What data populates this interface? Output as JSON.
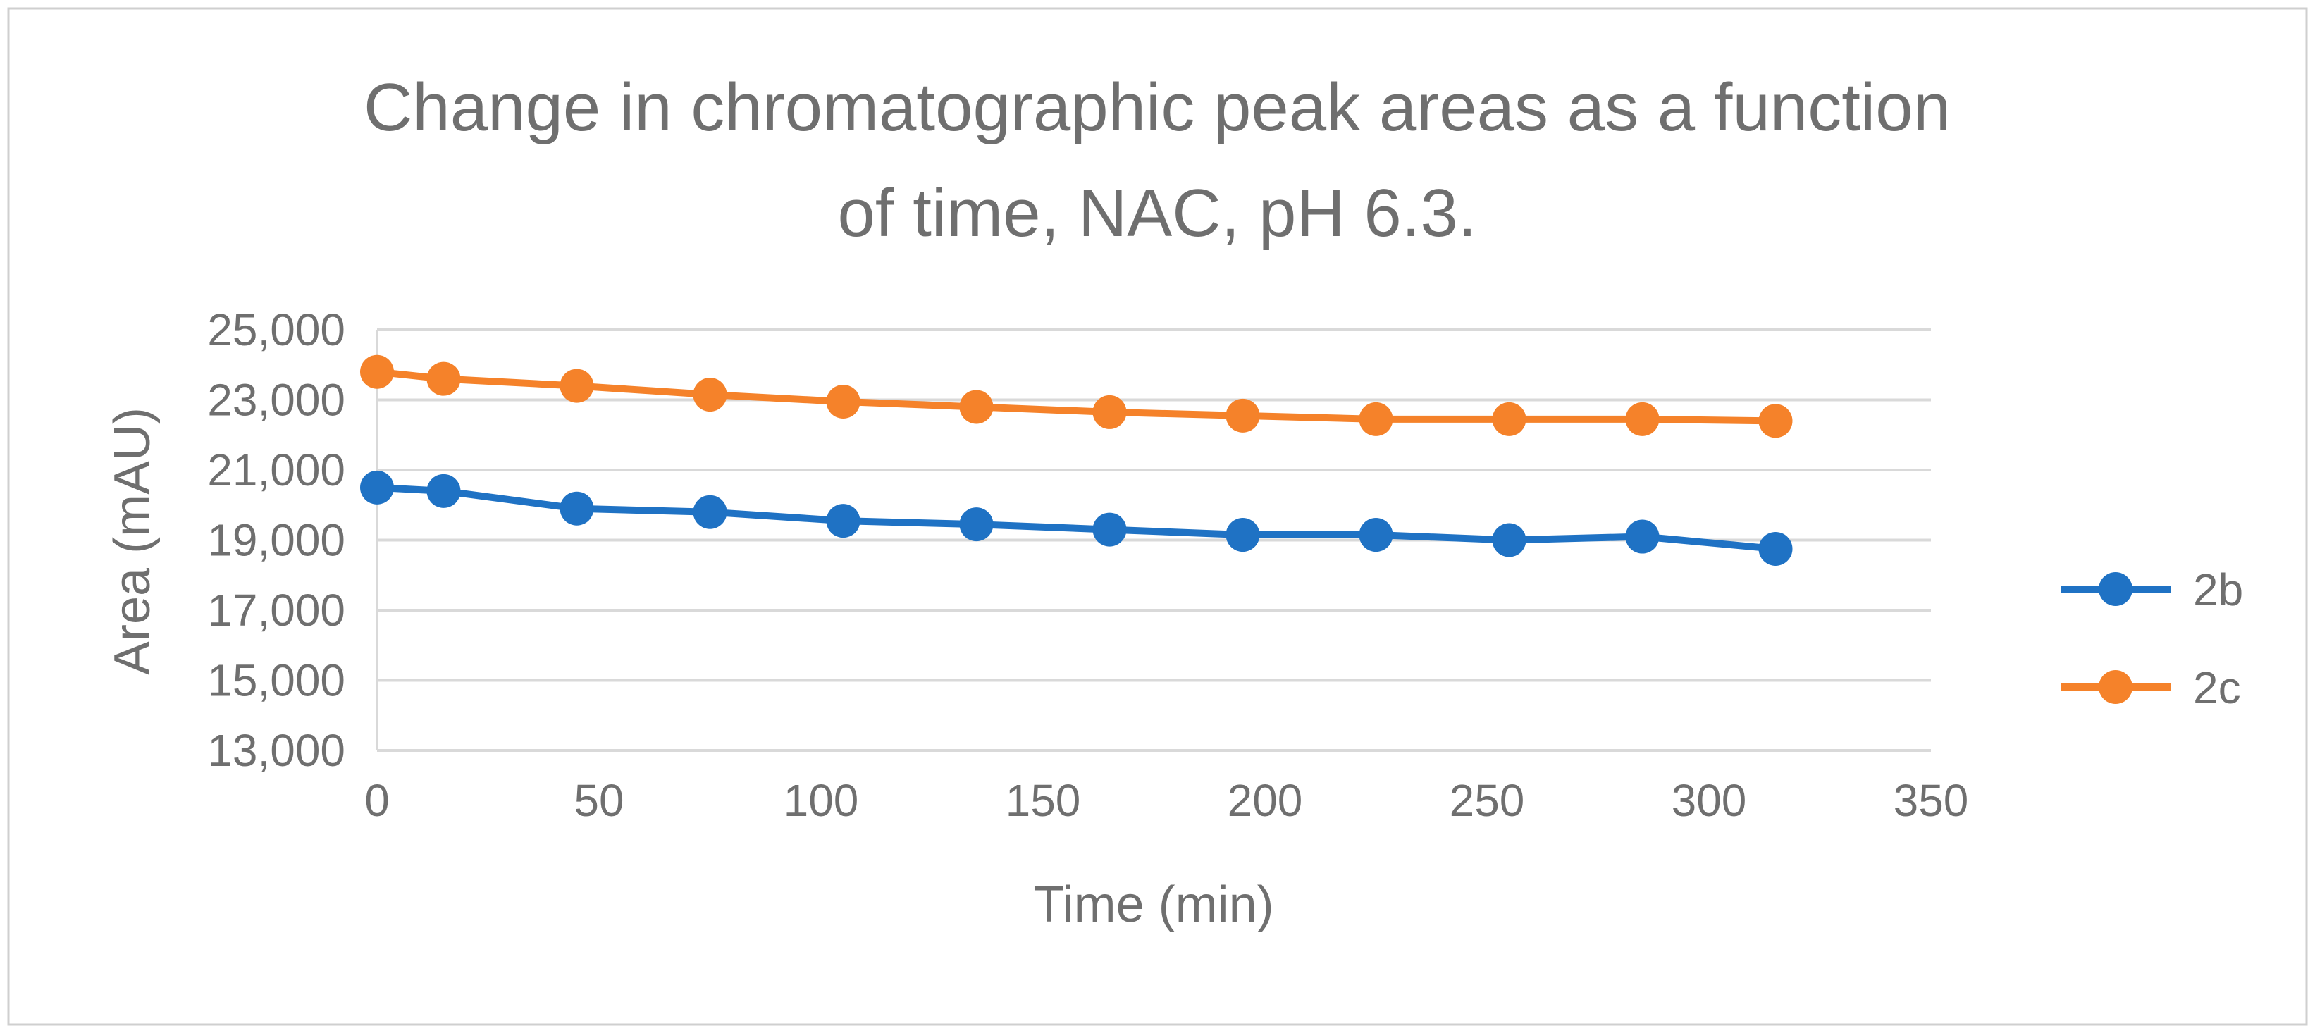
{
  "chart_data": {
    "type": "line",
    "title_lines": [
      "Change in chromatographic peak areas as a function",
      "of time, NAC, pH 6.3."
    ],
    "xlabel": "Time (min)",
    "ylabel": "Area (mAU)",
    "xlim": [
      0,
      350
    ],
    "ylim": [
      13000,
      25000
    ],
    "xticks": [
      0,
      50,
      100,
      150,
      200,
      250,
      300,
      350
    ],
    "yticks": [
      13000,
      15000,
      17000,
      19000,
      21000,
      23000,
      25000
    ],
    "ytick_labels": [
      "13,000",
      "15,000",
      "17,000",
      "19,000",
      "21,000",
      "23,000",
      "25,000"
    ],
    "grid": "horizontal",
    "legend_position": "right",
    "x": [
      0,
      15,
      45,
      75,
      105,
      135,
      165,
      195,
      225,
      255,
      285,
      315
    ],
    "series": [
      {
        "name": "2b",
        "color": "#1f72c4",
        "values": [
          20500,
          20400,
          19900,
          19800,
          19550,
          19450,
          19300,
          19150,
          19150,
          19000,
          19100,
          18750
        ]
      },
      {
        "name": "2c",
        "color": "#f5822a",
        "values": [
          23800,
          23600,
          23400,
          23150,
          22950,
          22800,
          22650,
          22550,
          22450,
          22450,
          22450,
          22400
        ]
      }
    ]
  }
}
